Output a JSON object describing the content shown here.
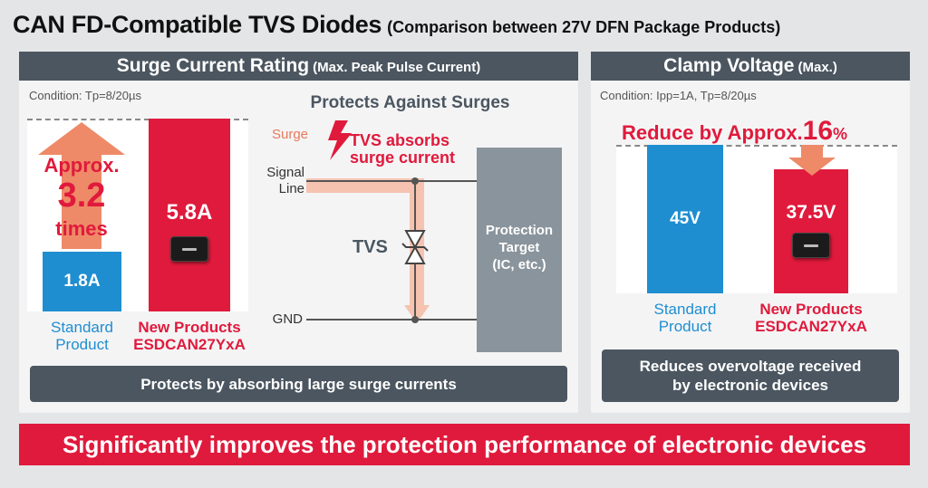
{
  "title": {
    "main": "CAN FD-Compatible TVS Diodes",
    "sub": "(Comparison between 27V DFN Package Products)"
  },
  "left_panel": {
    "header_main": "Surge Current Rating",
    "header_sub": "(Max. Peak Pulse Current)",
    "condition": "Condition: Tp=8/20µs",
    "approx_line1": "Approx.",
    "approx_value": "3.2",
    "approx_line3": "times",
    "standard_label": "1.8A",
    "new_label": "5.8A",
    "standard_caption": [
      "Standard",
      "Product"
    ],
    "new_caption": [
      "New Products",
      "ESDCAN27YxA"
    ],
    "note": "Protects by absorbing large surge currents"
  },
  "diagram": {
    "title": "Protects Against Surges",
    "surge": "Surge",
    "absorbs_line1": "TVS absorbs",
    "absorbs_line2": "surge current",
    "signal_line": [
      "Signal",
      "Line"
    ],
    "tvs": "TVS",
    "gnd": "GND",
    "target": [
      "Protection",
      "Target",
      "(IC, etc.)"
    ]
  },
  "right_panel": {
    "header_main": "Clamp Voltage",
    "header_sub": "(Max.)",
    "condition": "Condition: Ipp=1A, Tp=8/20µs",
    "reduce_text": "Reduce by Approx.",
    "reduce_value": "16",
    "reduce_unit": "%",
    "standard_label": "45V",
    "new_label": "37.5V",
    "standard_caption": [
      "Standard",
      "Product"
    ],
    "new_caption": [
      "New Products",
      "ESDCAN27YxA"
    ],
    "note": [
      "Reduces overvoltage received",
      "by electronic devices"
    ]
  },
  "banner": "Significantly improves the protection performance of electronic devices",
  "chart_data": [
    {
      "type": "bar",
      "categories": [
        "Standard Product",
        "New Products ESDCAN27YxA"
      ],
      "values": [
        1.8,
        5.8
      ],
      "title": "Surge Current Rating (Max. Peak Pulse Current)",
      "ylabel": ""
    },
    {
      "type": "bar",
      "categories": [
        "Standard Product",
        "New Products ESDCAN27YxA"
      ],
      "values": [
        45,
        37.5
      ],
      "title": "Clamp Voltage (Max.)",
      "ylabel": ""
    }
  ],
  "colors": {
    "standard": "#1f8ed0",
    "new": "#e01a3c",
    "header": "#4b5660",
    "arrow": "#ee8a68"
  }
}
